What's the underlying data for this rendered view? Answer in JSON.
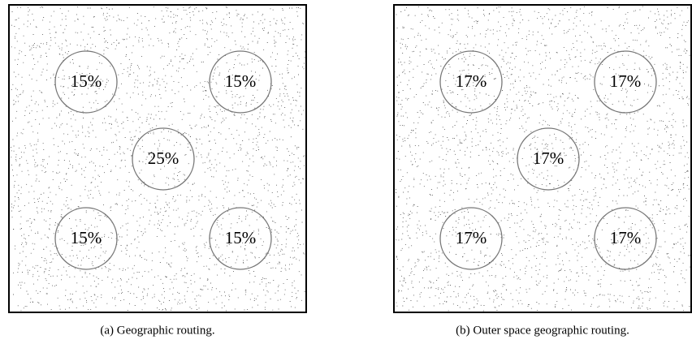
{
  "panels": [
    {
      "caption": "(a) Geographic routing.",
      "circles": [
        "15%",
        "15%",
        "25%",
        "15%",
        "15%"
      ]
    },
    {
      "caption": "(b) Outer space geographic routing.",
      "circles": [
        "17%",
        "17%",
        "17%",
        "17%",
        "17%"
      ]
    }
  ]
}
